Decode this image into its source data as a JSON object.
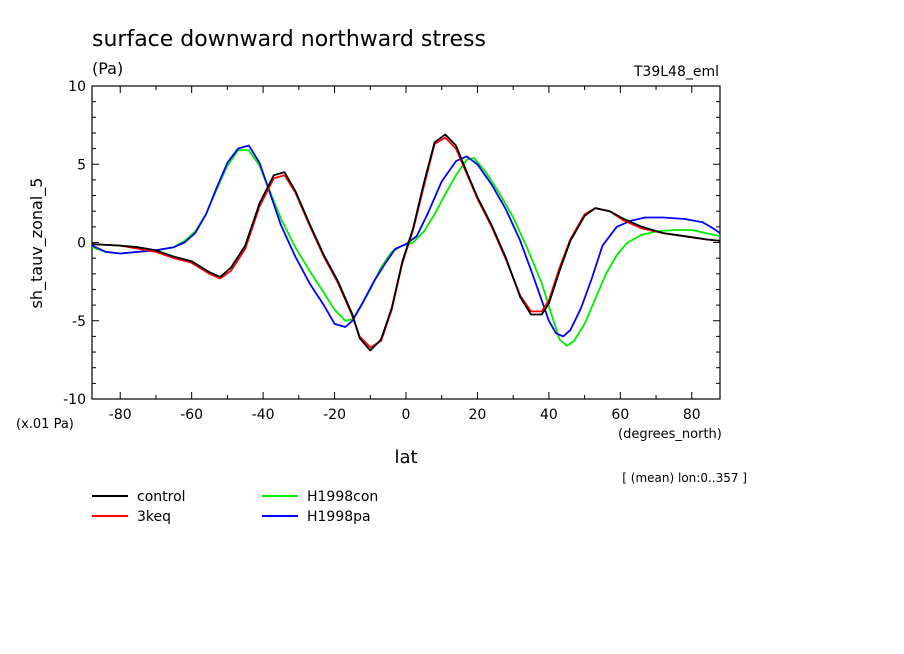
{
  "chart_data": {
    "type": "line",
    "title": "surface downward northward stress",
    "units": "(Pa)",
    "experiment": "T39L48_eml",
    "ylabel": "sh_tauv_zonal_5",
    "scale_note": "(x.01 Pa)",
    "xlabel": "lat",
    "x_units": "(degrees_north)",
    "mean_note": "[ (mean) lon:0..357 ]",
    "xlim": [
      -87.9,
      87.9
    ],
    "ylim": [
      -10,
      10
    ],
    "x_ticks": [
      -80,
      -60,
      -40,
      -20,
      0,
      20,
      40,
      60,
      80
    ],
    "y_ticks": [
      -10,
      -5,
      0,
      5,
      10
    ],
    "x_tick_labels": [
      "-80",
      "-60",
      "-40",
      "-20",
      "0",
      "20",
      "40",
      "60",
      "80"
    ],
    "y_tick_labels": [
      "-10",
      "-5",
      "0",
      "5",
      "10"
    ],
    "grid": false,
    "legend_position": "below",
    "series": [
      {
        "name": "control",
        "color": "#000000",
        "points": [
          [
            -87.9,
            -0.1
          ],
          [
            -80,
            -0.2
          ],
          [
            -75,
            -0.3
          ],
          [
            -70,
            -0.5
          ],
          [
            -65,
            -0.9
          ],
          [
            -60,
            -1.2
          ],
          [
            -55,
            -1.9
          ],
          [
            -52,
            -2.2
          ],
          [
            -49,
            -1.6
          ],
          [
            -45,
            -0.2
          ],
          [
            -41,
            2.5
          ],
          [
            -37,
            4.3
          ],
          [
            -34,
            4.5
          ],
          [
            -31,
            3.3
          ],
          [
            -27,
            1.2
          ],
          [
            -23,
            -0.8
          ],
          [
            -19,
            -2.5
          ],
          [
            -15,
            -4.6
          ],
          [
            -13,
            -6.1
          ],
          [
            -10,
            -6.9
          ],
          [
            -7,
            -6.2
          ],
          [
            -4,
            -4.2
          ],
          [
            -1,
            -1.2
          ],
          [
            2,
            0.9
          ],
          [
            5,
            3.8
          ],
          [
            8,
            6.4
          ],
          [
            11,
            6.9
          ],
          [
            14,
            6.2
          ],
          [
            17,
            4.5
          ],
          [
            20,
            2.9
          ],
          [
            24,
            1.1
          ],
          [
            28,
            -1.0
          ],
          [
            32,
            -3.5
          ],
          [
            35,
            -4.6
          ],
          [
            38,
            -4.6
          ],
          [
            40,
            -3.9
          ],
          [
            43,
            -1.8
          ],
          [
            46,
            0.1
          ],
          [
            50,
            1.7
          ],
          [
            53,
            2.2
          ],
          [
            57,
            2.0
          ],
          [
            61,
            1.5
          ],
          [
            66,
            1.0
          ],
          [
            72,
            0.6
          ],
          [
            78,
            0.4
          ],
          [
            84,
            0.2
          ],
          [
            87.9,
            0.1
          ]
        ]
      },
      {
        "name": "3keq",
        "color": "#ff0000",
        "points": [
          [
            -87.9,
            -0.1
          ],
          [
            -80,
            -0.2
          ],
          [
            -75,
            -0.4
          ],
          [
            -70,
            -0.6
          ],
          [
            -65,
            -1.0
          ],
          [
            -60,
            -1.3
          ],
          [
            -55,
            -2.0
          ],
          [
            -52,
            -2.3
          ],
          [
            -49,
            -1.8
          ],
          [
            -45,
            -0.4
          ],
          [
            -41,
            2.3
          ],
          [
            -37,
            4.1
          ],
          [
            -34,
            4.3
          ],
          [
            -31,
            3.2
          ],
          [
            -27,
            1.1
          ],
          [
            -23,
            -0.9
          ],
          [
            -19,
            -2.6
          ],
          [
            -15,
            -4.7
          ],
          [
            -13,
            -6.0
          ],
          [
            -10,
            -6.7
          ],
          [
            -7,
            -6.3
          ],
          [
            -4,
            -4.3
          ],
          [
            -1,
            -1.3
          ],
          [
            2,
            0.8
          ],
          [
            5,
            3.6
          ],
          [
            8,
            6.3
          ],
          [
            11,
            6.7
          ],
          [
            14,
            6.0
          ],
          [
            17,
            4.4
          ],
          [
            20,
            2.8
          ],
          [
            24,
            1.0
          ],
          [
            28,
            -1.1
          ],
          [
            32,
            -3.4
          ],
          [
            35,
            -4.4
          ],
          [
            38,
            -4.4
          ],
          [
            40,
            -3.7
          ],
          [
            43,
            -1.6
          ],
          [
            46,
            0.2
          ],
          [
            50,
            1.8
          ],
          [
            53,
            2.2
          ],
          [
            57,
            2.0
          ],
          [
            61,
            1.4
          ],
          [
            66,
            0.9
          ],
          [
            72,
            0.6
          ],
          [
            78,
            0.4
          ],
          [
            84,
            0.2
          ],
          [
            87.9,
            0.1
          ]
        ]
      },
      {
        "name": "H1998con",
        "color": "#00ee00",
        "points": [
          [
            -87.9,
            -0.3
          ],
          [
            -84,
            -0.6
          ],
          [
            -80,
            -0.7
          ],
          [
            -75,
            -0.6
          ],
          [
            -70,
            -0.5
          ],
          [
            -65,
            -0.3
          ],
          [
            -62,
            0.1
          ],
          [
            -59,
            0.7
          ],
          [
            -56,
            1.8
          ],
          [
            -53,
            3.4
          ],
          [
            -50,
            4.9
          ],
          [
            -47,
            5.9
          ],
          [
            -44,
            5.9
          ],
          [
            -41,
            4.9
          ],
          [
            -38,
            3.2
          ],
          [
            -35,
            1.5
          ],
          [
            -31,
            -0.3
          ],
          [
            -27,
            -1.8
          ],
          [
            -23,
            -3.2
          ],
          [
            -20,
            -4.3
          ],
          [
            -17,
            -5.0
          ],
          [
            -15,
            -4.9
          ],
          [
            -13,
            -4.2
          ],
          [
            -10,
            -3.0
          ],
          [
            -7,
            -1.6
          ],
          [
            -4,
            -0.6
          ],
          [
            -1,
            -0.2
          ],
          [
            2,
            0.0
          ],
          [
            5,
            0.7
          ],
          [
            8,
            1.8
          ],
          [
            11,
            3.1
          ],
          [
            14,
            4.3
          ],
          [
            17,
            5.3
          ],
          [
            19,
            5.4
          ],
          [
            22,
            4.6
          ],
          [
            26,
            3.2
          ],
          [
            30,
            1.6
          ],
          [
            34,
            -0.4
          ],
          [
            38,
            -2.6
          ],
          [
            41,
            -4.8
          ],
          [
            43,
            -6.2
          ],
          [
            45,
            -6.6
          ],
          [
            47,
            -6.3
          ],
          [
            50,
            -5.2
          ],
          [
            53,
            -3.6
          ],
          [
            56,
            -2.0
          ],
          [
            59,
            -0.8
          ],
          [
            62,
            0.0
          ],
          [
            66,
            0.5
          ],
          [
            70,
            0.7
          ],
          [
            75,
            0.8
          ],
          [
            80,
            0.8
          ],
          [
            84,
            0.6
          ],
          [
            87.9,
            0.4
          ]
        ]
      },
      {
        "name": "H1998pa",
        "color": "#0000ff",
        "points": [
          [
            -87.9,
            -0.2
          ],
          [
            -84,
            -0.6
          ],
          [
            -80,
            -0.7
          ],
          [
            -75,
            -0.6
          ],
          [
            -70,
            -0.5
          ],
          [
            -65,
            -0.3
          ],
          [
            -62,
            0.0
          ],
          [
            -59,
            0.6
          ],
          [
            -56,
            1.8
          ],
          [
            -53,
            3.5
          ],
          [
            -50,
            5.1
          ],
          [
            -47,
            6.0
          ],
          [
            -44,
            6.2
          ],
          [
            -41,
            5.1
          ],
          [
            -38,
            3.1
          ],
          [
            -35,
            1.1
          ],
          [
            -31,
            -0.9
          ],
          [
            -27,
            -2.6
          ],
          [
            -23,
            -4.0
          ],
          [
            -20,
            -5.2
          ],
          [
            -17,
            -5.4
          ],
          [
            -15,
            -5.0
          ],
          [
            -12,
            -3.8
          ],
          [
            -9,
            -2.5
          ],
          [
            -6,
            -1.4
          ],
          [
            -3,
            -0.4
          ],
          [
            0,
            -0.1
          ],
          [
            3,
            0.4
          ],
          [
            6,
            1.8
          ],
          [
            10,
            3.9
          ],
          [
            14,
            5.2
          ],
          [
            17,
            5.5
          ],
          [
            20,
            5.0
          ],
          [
            24,
            3.7
          ],
          [
            28,
            2.1
          ],
          [
            32,
            0.1
          ],
          [
            36,
            -2.4
          ],
          [
            40,
            -5.0
          ],
          [
            42,
            -5.8
          ],
          [
            44,
            -6.0
          ],
          [
            46,
            -5.6
          ],
          [
            49,
            -4.2
          ],
          [
            52,
            -2.3
          ],
          [
            55,
            -0.2
          ],
          [
            59,
            1.0
          ],
          [
            63,
            1.4
          ],
          [
            67,
            1.6
          ],
          [
            72,
            1.6
          ],
          [
            78,
            1.5
          ],
          [
            83,
            1.3
          ],
          [
            86,
            0.9
          ],
          [
            87.9,
            0.6
          ]
        ]
      }
    ]
  }
}
